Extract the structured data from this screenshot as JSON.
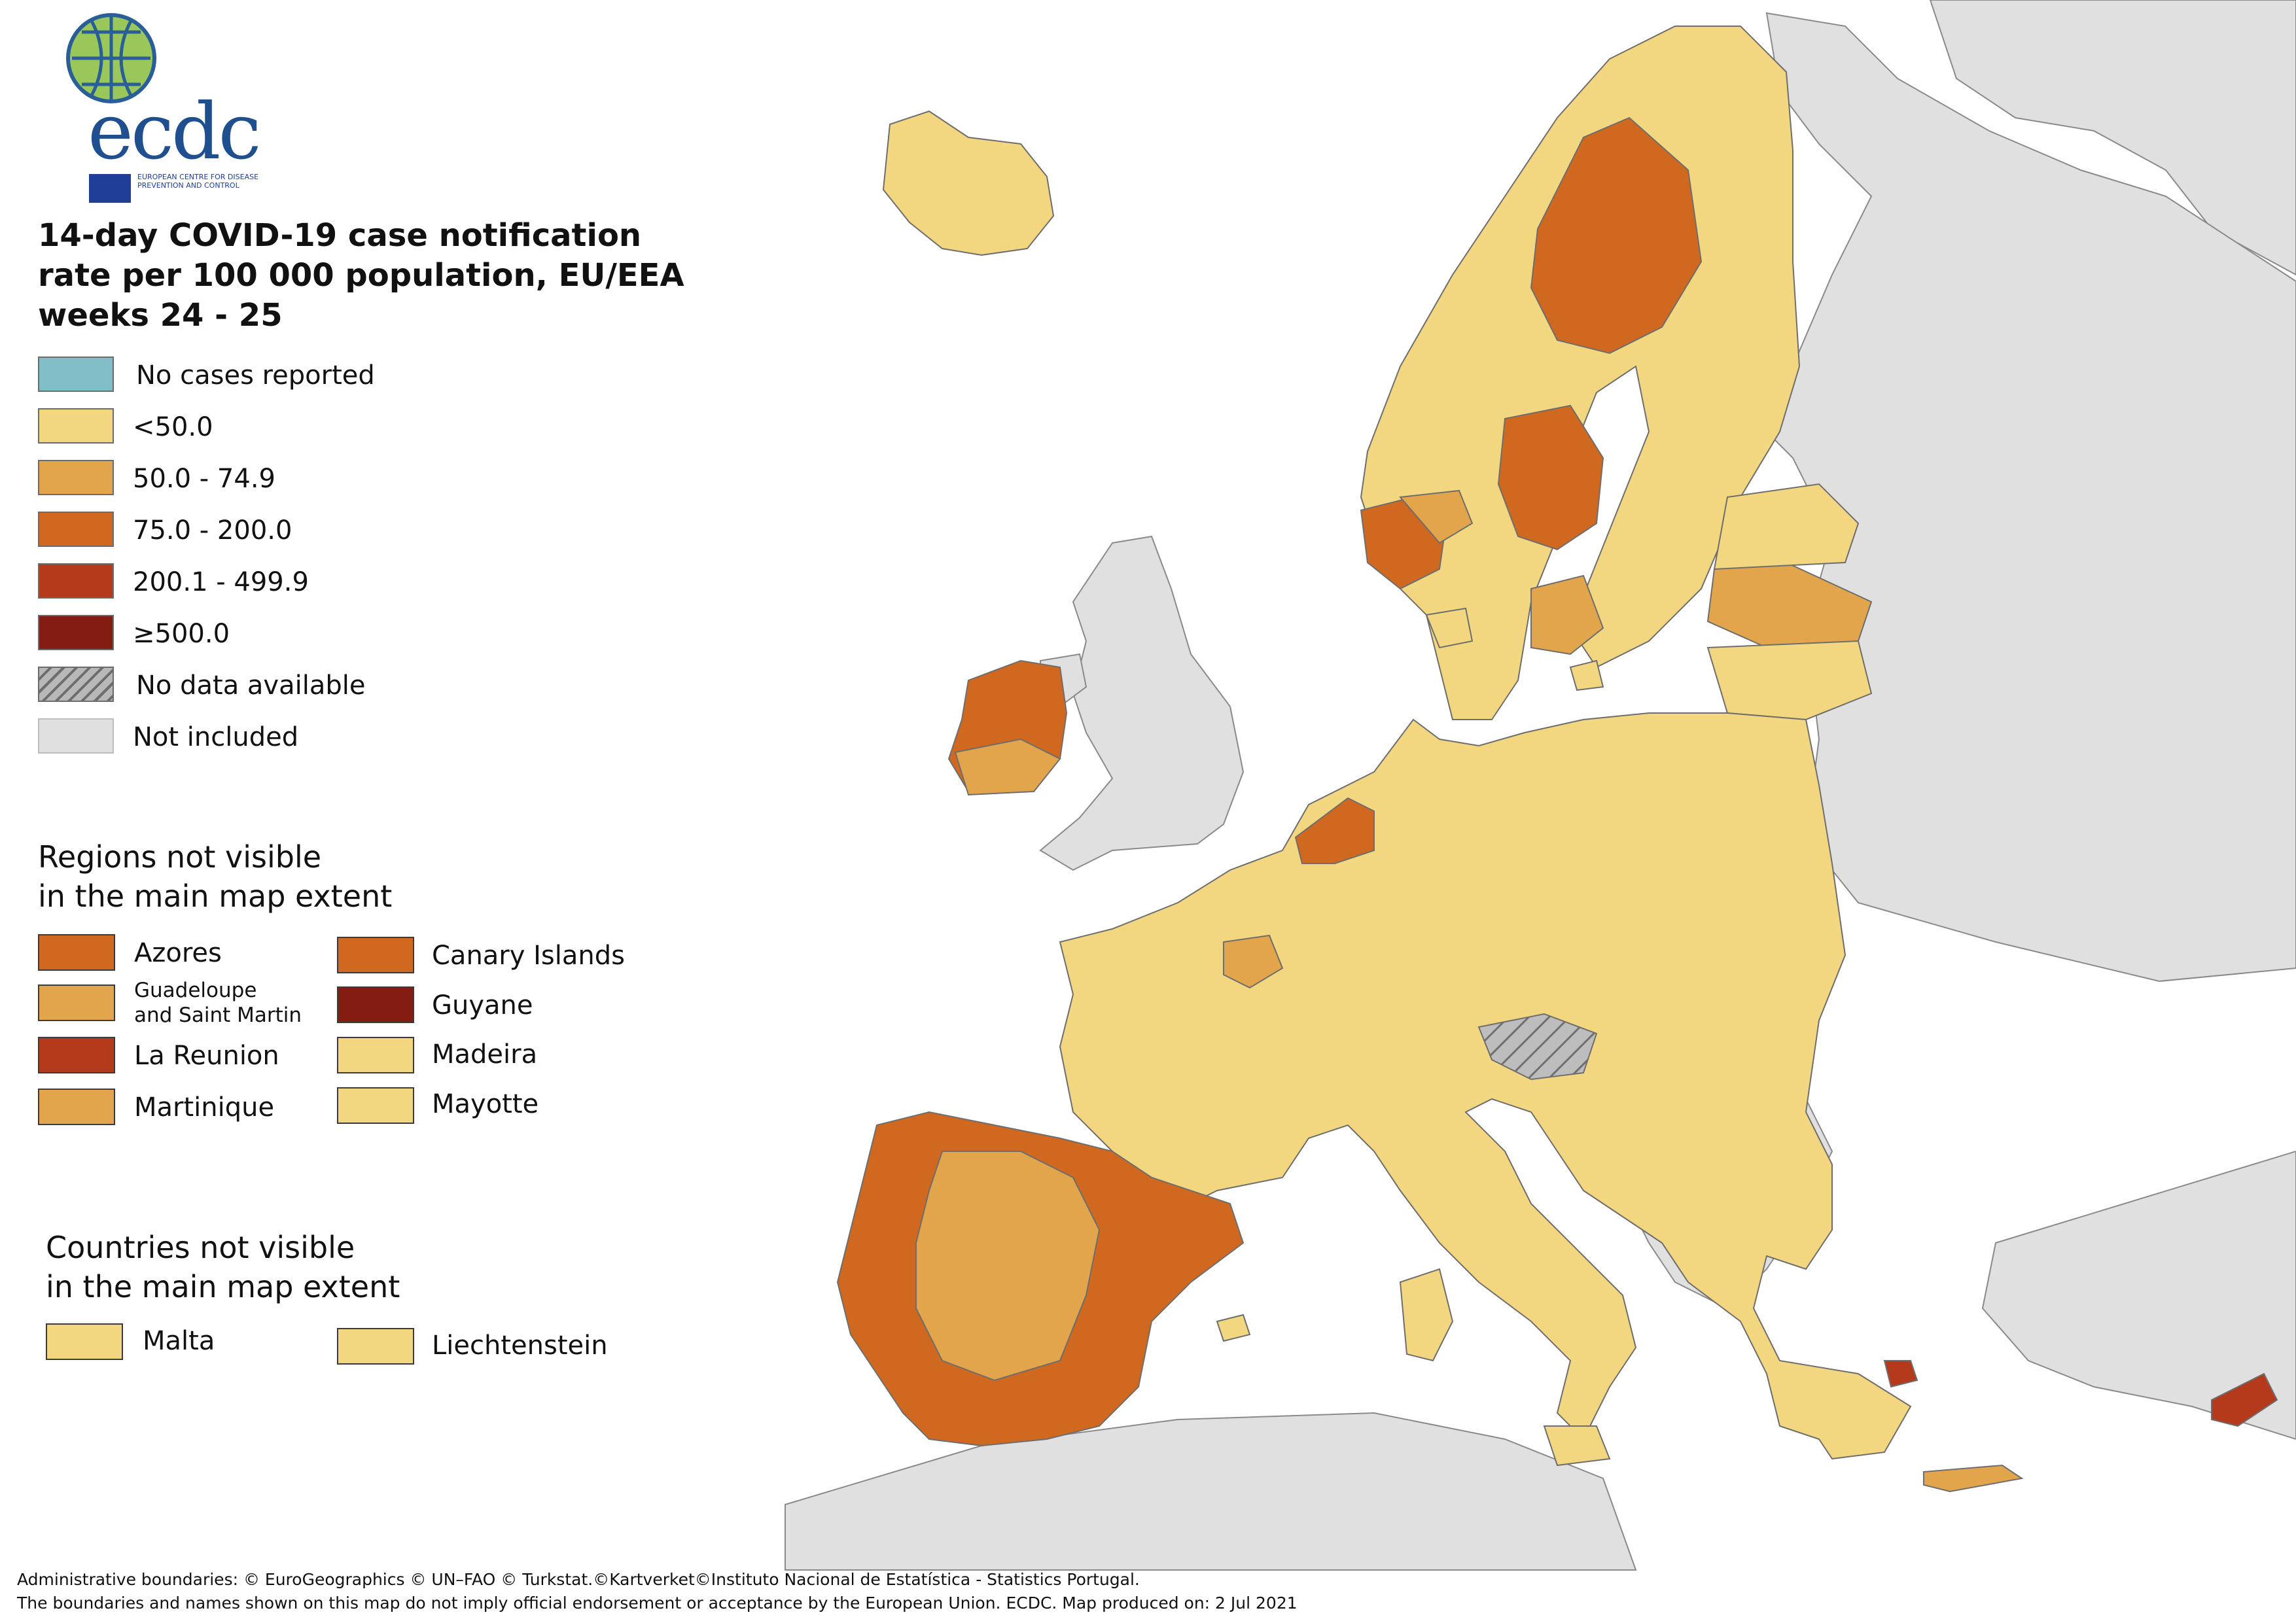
{
  "logo": {
    "wordmark": "ecdc",
    "subtitle": "EUROPEAN CENTRE FOR DISEASE PREVENTION AND CONTROL",
    "icon": "globe-logo-icon"
  },
  "title": {
    "line1": "14-day COVID-19 case notification",
    "line2": "rate per 100 000 population, EU/EEA",
    "line3": "weeks 24 - 25"
  },
  "colors": {
    "sea": "#ffffff",
    "not_included": "#e0e0e0",
    "no_cases": "#80bfc7",
    "lt50": "#f3d780",
    "c50_74": "#e2a54b",
    "c75_200": "#d0681f",
    "c200_499": "#b53a1b",
    "ge500": "#841c12",
    "border": "#6e6e6e"
  },
  "legend": {
    "items": [
      {
        "label": "No cases reported",
        "color": "#80bfc7"
      },
      {
        "label": "<50.0",
        "color": "#f3d780"
      },
      {
        "label": "50.0 - 74.9",
        "color": "#e2a54b"
      },
      {
        "label": "75.0 - 200.0",
        "color": "#d0681f"
      },
      {
        "label": "200.1 - 499.9",
        "color": "#b53a1b"
      },
      {
        "label": "≥500.0",
        "color": "#841c12"
      },
      {
        "label": "No data available",
        "color": "hatch"
      },
      {
        "label": "Not included",
        "color": "#e0e0e0"
      }
    ]
  },
  "regions_section": {
    "title_line1": "Regions not visible",
    "title_line2": "in the main map extent",
    "items": [
      {
        "label": "Azores",
        "color": "#d0681f"
      },
      {
        "label": "Canary Islands",
        "color": "#d0681f"
      },
      {
        "label_line1": "Guadeloupe",
        "label_line2": "and Saint Martin",
        "color": "#e2a54b"
      },
      {
        "label": "Guyane",
        "color": "#841c12"
      },
      {
        "label": "La Reunion",
        "color": "#b53a1b"
      },
      {
        "label": "Madeira",
        "color": "#f3d780"
      },
      {
        "label": "Martinique",
        "color": "#e2a54b"
      },
      {
        "label": "Mayotte",
        "color": "#f3d780"
      }
    ]
  },
  "countries_section": {
    "title_line1": "Countries not visible",
    "title_line2": "in the main map extent",
    "items": [
      {
        "label": "Malta",
        "color": "#f3d780"
      },
      {
        "label": "Liechtenstein",
        "color": "#f3d780"
      }
    ]
  },
  "footer": {
    "line1": "Administrative boundaries: © EuroGeographics © UN–FAO © Turkstat.©Kartverket©Instituto Nacional de Estatística - Statistics Portugal.",
    "line2": "The boundaries and names shown on this map do not imply official endorsement or acceptance by the European Union. ECDC. Map produced on: 2 Jul 2021"
  },
  "map": {
    "regions": [
      {
        "name": "iceland",
        "class": "lt50"
      },
      {
        "name": "ireland-west",
        "class": "c75_200"
      },
      {
        "name": "ireland-south",
        "class": "c50_74"
      },
      {
        "name": "norway-south-west",
        "class": "c75_200"
      },
      {
        "name": "norway-south",
        "class": "c50_74"
      },
      {
        "name": "sweden-north",
        "class": "c75_200"
      },
      {
        "name": "sweden-central",
        "class": "c75_200"
      },
      {
        "name": "sweden-south",
        "class": "c50_74"
      },
      {
        "name": "finland",
        "class": "lt50"
      },
      {
        "name": "latvia",
        "class": "c50_74"
      },
      {
        "name": "netherlands",
        "class": "c75_200"
      },
      {
        "name": "portugal",
        "class": "c75_200"
      },
      {
        "name": "spain-north-east",
        "class": "c75_200"
      },
      {
        "name": "spain-south",
        "class": "c75_200"
      },
      {
        "name": "spain-central",
        "class": "c50_74"
      },
      {
        "name": "switzerland",
        "class": "not_included"
      },
      {
        "name": "austria-tyrol",
        "class": "no_data"
      },
      {
        "name": "greece-attica",
        "class": "c200_499"
      },
      {
        "name": "cyprus",
        "class": "c200_499"
      },
      {
        "name": "crete",
        "class": "c50_74"
      },
      {
        "name": "paris-region",
        "class": "c50_74"
      }
    ]
  }
}
